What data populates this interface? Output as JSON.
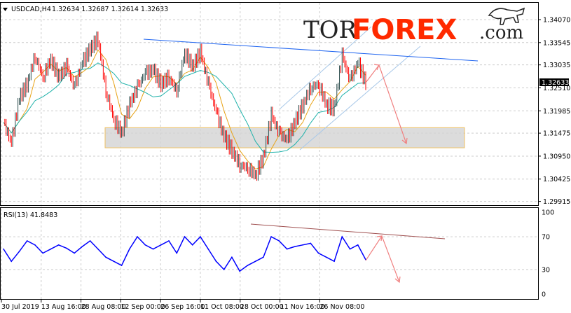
{
  "header": {
    "symbol": "USDCAD,H4",
    "ohlc": "1.32634 1.32687 1.32614 1.32633"
  },
  "logo": {
    "part1": "TOR",
    "part2": "FOREX",
    "part3": ".com",
    "colors": {
      "tor": "#222222",
      "forex": "#ff2a00"
    }
  },
  "chart_data": [
    {
      "type": "candlestick",
      "title": "USDCAD,H4",
      "current_price": "1.32633",
      "y_ticks": [
        "1.34070",
        "1.33545",
        "1.33035",
        "1.32510",
        "1.31985",
        "1.31475",
        "1.30950",
        "1.30425",
        "1.29915"
      ],
      "ylim": [
        1.2988,
        1.3447
      ],
      "x_ticks": [
        "30 Jul 2019",
        "13 Aug 16:00",
        "28 Aug 08:00",
        "12 Sep 00:00",
        "26 Sep 16:00",
        "11 Oct 08:00",
        "28 Oct 00:00",
        "11 Nov 16:00",
        "26 Nov 08:00"
      ],
      "closes": [
        1.3172,
        1.3124,
        1.3228,
        1.326,
        1.3324,
        1.3276,
        1.3316,
        1.3276,
        1.33,
        1.3252,
        1.3308,
        1.334,
        1.3364,
        1.3244,
        1.318,
        1.3148,
        1.3212,
        1.3252,
        1.3284,
        1.3292,
        1.326,
        1.3276,
        1.3244,
        1.3332,
        1.33,
        1.3332,
        1.326,
        1.3196,
        1.314,
        1.3108,
        1.3076,
        1.3068,
        1.3052,
        1.3092,
        1.3188,
        1.3148,
        1.3132,
        1.3172,
        1.3212,
        1.3252,
        1.326,
        1.3212,
        1.3204,
        1.3324,
        1.3268,
        1.3308,
        1.3263
      ],
      "moving_averages": [
        {
          "color": "#e8a317"
        },
        {
          "color": "#20b2aa"
        }
      ],
      "annotations": {
        "resistance_line_color": "#1e64f0",
        "channel_color": "#a8c8e8",
        "support_zone": [
          1.3114,
          1.316
        ],
        "forecast_arrow_color": "#f08080"
      },
      "colors": {
        "up": "#2f4f4f",
        "down": "#ff0000"
      }
    },
    {
      "type": "line",
      "title": "RSI(13) 41.8483",
      "label": "RSI(13)",
      "value": "41.8483",
      "ylim": [
        0,
        100
      ],
      "y_ticks": [
        "100",
        "70",
        "30",
        "0"
      ],
      "values": [
        55,
        40,
        52,
        65,
        60,
        50,
        55,
        60,
        56,
        50,
        58,
        65,
        55,
        45,
        40,
        35,
        55,
        70,
        60,
        55,
        60,
        65,
        50,
        70,
        60,
        70,
        55,
        40,
        30,
        45,
        28,
        35,
        40,
        45,
        70,
        65,
        55,
        58,
        60,
        62,
        50,
        45,
        40,
        70,
        55,
        60,
        42
      ],
      "color": "#0000ff",
      "trendline_color": "#a05050"
    }
  ]
}
